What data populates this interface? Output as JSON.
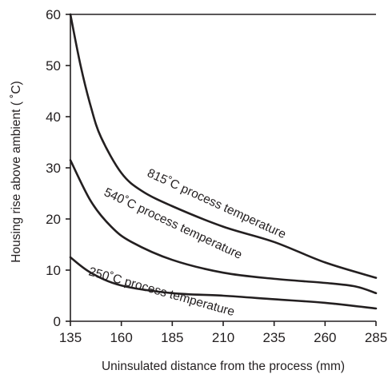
{
  "chart_data": {
    "type": "line",
    "title": "",
    "xlabel": "Uninsulated distance from the process (mm)",
    "ylabel": "Housing rise above ambient ( ˚C)",
    "xlim": [
      135,
      285
    ],
    "ylim": [
      0,
      60
    ],
    "x_ticks": [
      135,
      160,
      185,
      210,
      235,
      260,
      285
    ],
    "y_ticks": [
      0,
      10,
      20,
      30,
      40,
      50,
      60
    ],
    "grid": false,
    "series": [
      {
        "name": "815˚C process temperature",
        "x": [
          135,
          140,
          145,
          150,
          160,
          170,
          185,
          210,
          235,
          260,
          285
        ],
        "y": [
          60,
          50,
          42,
          36,
          29,
          25.5,
          22.5,
          18.5,
          15.5,
          11.5,
          8.5
        ]
      },
      {
        "name": "540˚C process temperature",
        "x": [
          135,
          145,
          155,
          165,
          185,
          210,
          235,
          260,
          275,
          285
        ],
        "y": [
          31.5,
          23.5,
          18.5,
          15.5,
          12,
          9.5,
          8.3,
          7.5,
          6.8,
          5.5
        ]
      },
      {
        "name": "250˚C process temperature",
        "x": [
          135,
          145,
          160,
          185,
          210,
          235,
          260,
          285
        ],
        "y": [
          12.5,
          9.5,
          7,
          5.5,
          5,
          4.3,
          3.6,
          2.5
        ]
      }
    ]
  }
}
